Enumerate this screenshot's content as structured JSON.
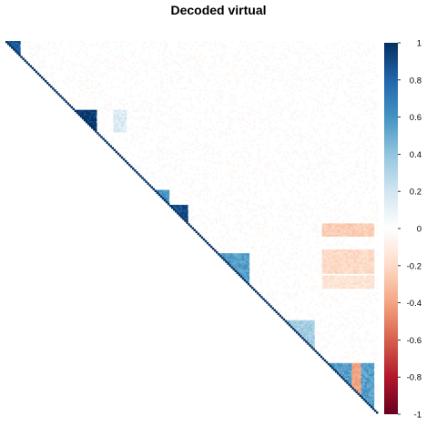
{
  "chart_data": {
    "type": "heatmap",
    "title": "Decoded virtual",
    "matrix_shape": "upper-triangular correlation matrix",
    "n_variables": 200,
    "diagonal_value": 1,
    "color_scale": {
      "min": -1,
      "max": 1,
      "ticks": [
        "1",
        "0.8",
        "0.6",
        "0.4",
        "0.2",
        "0",
        "-0.2",
        "-0.4",
        "-0.6",
        "-0.8",
        "-1"
      ],
      "stops": [
        "#67001f",
        "#b2182b",
        "#d6604d",
        "#f4a582",
        "#fddbc7",
        "#ffffff",
        "#d1e5f0",
        "#92c5de",
        "#4393c3",
        "#2166ac",
        "#053061"
      ]
    },
    "correlation_blocks": [
      {
        "rows": [
          0,
          7
        ],
        "cols": [
          0,
          7
        ],
        "value": 0.85
      },
      {
        "rows": [
          37,
          48
        ],
        "cols": [
          37,
          48
        ],
        "value": 0.97
      },
      {
        "rows": [
          37,
          48
        ],
        "cols": [
          58,
          64
        ],
        "value": 0.15
      },
      {
        "rows": [
          80,
          87
        ],
        "cols": [
          80,
          87
        ],
        "value": 0.6
      },
      {
        "rows": [
          88,
          97
        ],
        "cols": [
          88,
          97
        ],
        "value": 0.9
      },
      {
        "rows": [
          114,
          130
        ],
        "cols": [
          114,
          130
        ],
        "value": 0.55
      },
      {
        "rows": [
          150,
          165
        ],
        "cols": [
          150,
          165
        ],
        "value": 0.35
      },
      {
        "rows": [
          173,
          197
        ],
        "cols": [
          173,
          197
        ],
        "value": 0.55
      }
    ],
    "row_bands": [
      {
        "rows": [
          98,
          104
        ],
        "cols": [
          170,
          197
        ],
        "value": -0.25
      },
      {
        "rows": [
          112,
          124
        ],
        "cols": [
          170,
          197
        ],
        "value": -0.2
      },
      {
        "rows": [
          126,
          132
        ],
        "cols": [
          170,
          197
        ],
        "value": -0.15
      },
      {
        "rows": [
          173,
          197
        ],
        "cols": [
          186,
          190
        ],
        "value": -0.4
      }
    ],
    "legend_position": "right"
  }
}
